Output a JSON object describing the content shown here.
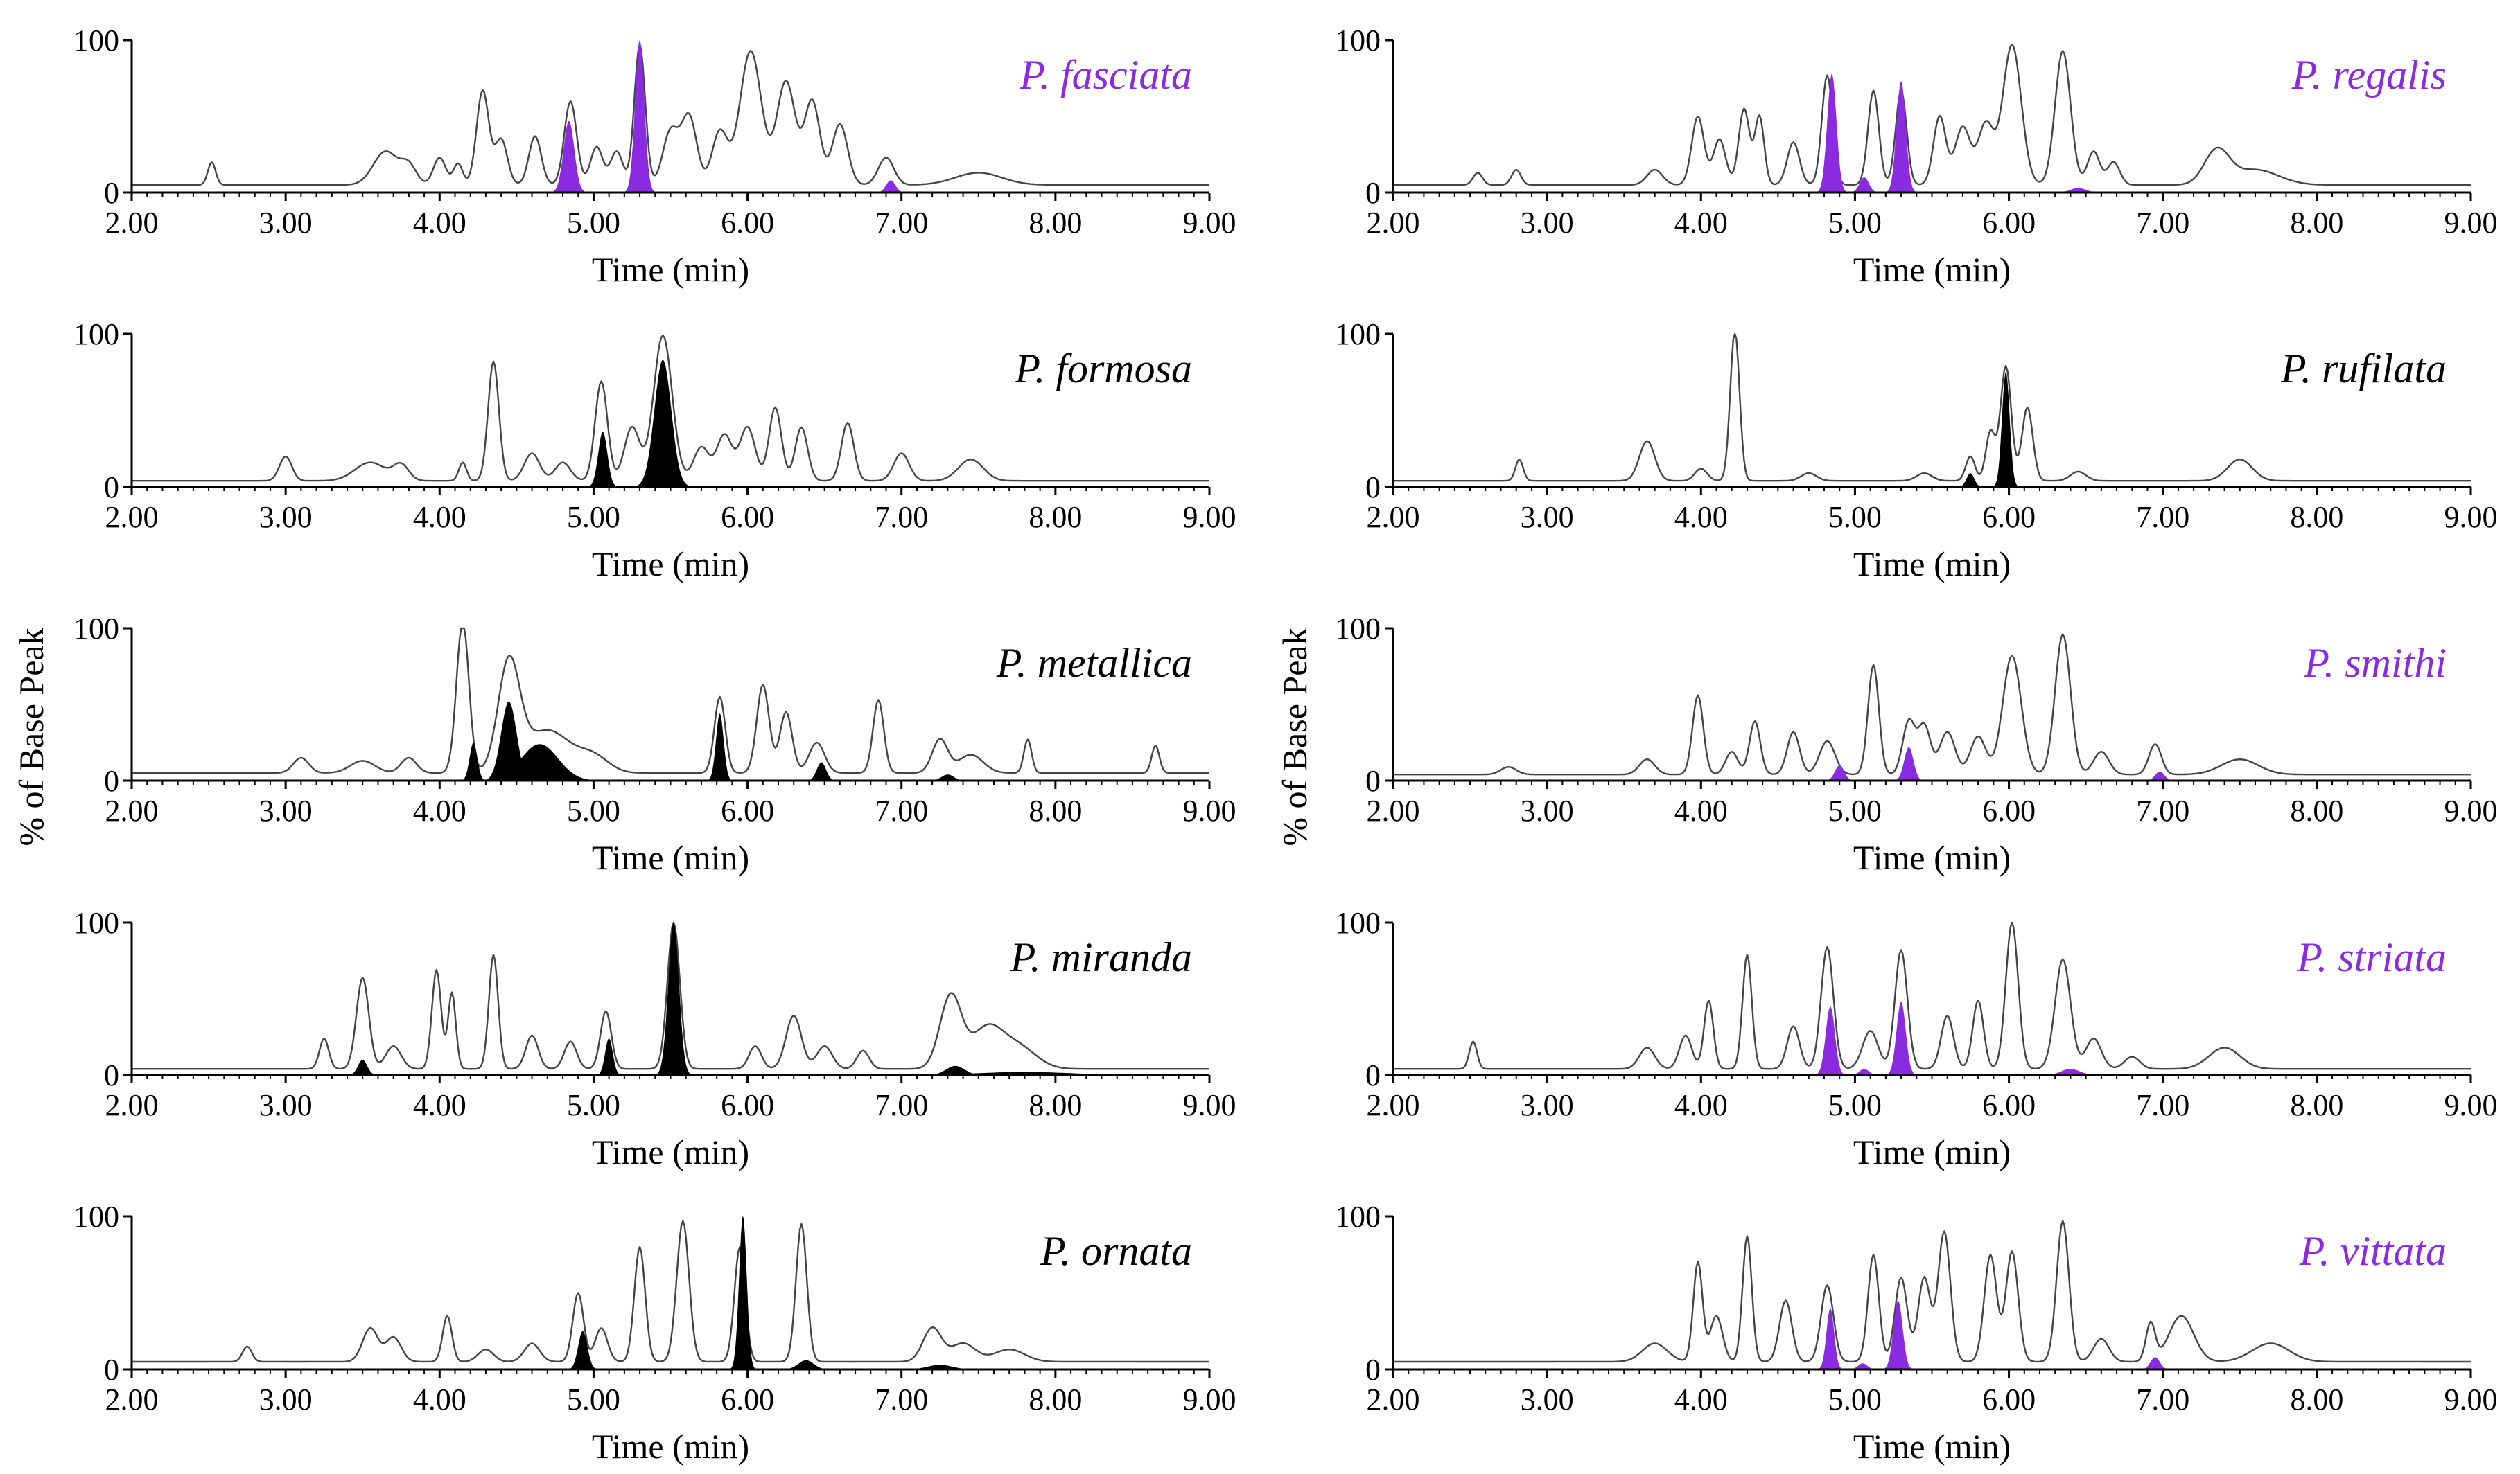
{
  "colors": {
    "purple": "#8a2be2",
    "black": "#000000",
    "trace": "#444444"
  },
  "chart_data": {
    "type": "area",
    "ylabel": "% of Base Peak",
    "xlabel": "Time (min)",
    "xlim": [
      2.0,
      9.0
    ],
    "ylim": [
      0,
      100
    ],
    "x_ticks": [
      "2.00",
      "3.00",
      "4.00",
      "5.00",
      "6.00",
      "7.00",
      "8.00",
      "9.00"
    ],
    "y_ticks": [
      "0",
      "100"
    ],
    "grid": false,
    "panels": [
      {
        "title": "P. fasciata",
        "title_color": "#8a2be2",
        "fill_color": "#8a2be2",
        "baseline": 5,
        "trace_peaks": [
          [
            2.52,
            15,
            0.025
          ],
          [
            3.65,
            22,
            0.08
          ],
          [
            3.8,
            12,
            0.05
          ],
          [
            4.0,
            18,
            0.04
          ],
          [
            4.12,
            14,
            0.03
          ],
          [
            4.28,
            62,
            0.04
          ],
          [
            4.4,
            30,
            0.04
          ],
          [
            4.62,
            32,
            0.04
          ],
          [
            4.85,
            55,
            0.04
          ],
          [
            5.02,
            25,
            0.04
          ],
          [
            5.15,
            22,
            0.04
          ],
          [
            5.3,
            92,
            0.035
          ],
          [
            5.5,
            35,
            0.05
          ],
          [
            5.62,
            45,
            0.05
          ],
          [
            5.82,
            35,
            0.05
          ],
          [
            6.02,
            88,
            0.07
          ],
          [
            6.25,
            68,
            0.06
          ],
          [
            6.42,
            55,
            0.05
          ],
          [
            6.6,
            40,
            0.05
          ],
          [
            6.9,
            18,
            0.05
          ],
          [
            7.5,
            8,
            0.15
          ]
        ],
        "fill_peaks": [
          [
            4.84,
            47,
            0.035
          ],
          [
            5.3,
            100,
            0.03
          ],
          [
            6.93,
            8,
            0.03
          ]
        ]
      },
      {
        "title": "P. formosa",
        "title_color": "#000000",
        "fill_color": "#000000",
        "baseline": 4,
        "trace_peaks": [
          [
            3.0,
            16,
            0.04
          ],
          [
            3.55,
            12,
            0.1
          ],
          [
            3.75,
            10,
            0.05
          ],
          [
            4.15,
            12,
            0.025
          ],
          [
            4.35,
            78,
            0.035
          ],
          [
            4.6,
            18,
            0.05
          ],
          [
            4.8,
            12,
            0.05
          ],
          [
            5.05,
            65,
            0.04
          ],
          [
            5.25,
            35,
            0.05
          ],
          [
            5.45,
            95,
            0.06
          ],
          [
            5.7,
            22,
            0.05
          ],
          [
            5.85,
            30,
            0.05
          ],
          [
            6.0,
            35,
            0.05
          ],
          [
            6.18,
            48,
            0.04
          ],
          [
            6.35,
            35,
            0.04
          ],
          [
            6.65,
            38,
            0.04
          ],
          [
            7.0,
            18,
            0.05
          ],
          [
            7.45,
            14,
            0.08
          ]
        ],
        "fill_peaks": [
          [
            5.06,
            36,
            0.03
          ],
          [
            5.45,
            83,
            0.055
          ]
        ]
      },
      {
        "title": "P. metallica",
        "title_color": "#000000",
        "fill_color": "#000000",
        "baseline": 5,
        "trace_peaks": [
          [
            3.1,
            10,
            0.05
          ],
          [
            3.5,
            8,
            0.08
          ],
          [
            3.8,
            10,
            0.05
          ],
          [
            4.15,
            100,
            0.04
          ],
          [
            4.45,
            70,
            0.07
          ],
          [
            4.7,
            28,
            0.15
          ],
          [
            5.0,
            10,
            0.1
          ],
          [
            5.82,
            50,
            0.035
          ],
          [
            6.1,
            58,
            0.04
          ],
          [
            6.25,
            40,
            0.04
          ],
          [
            6.45,
            20,
            0.05
          ],
          [
            6.85,
            48,
            0.035
          ],
          [
            7.25,
            22,
            0.05
          ],
          [
            7.45,
            12,
            0.08
          ],
          [
            7.82,
            22,
            0.025
          ],
          [
            8.65,
            18,
            0.025
          ]
        ],
        "fill_peaks": [
          [
            4.22,
            25,
            0.025
          ],
          [
            4.45,
            52,
            0.05
          ],
          [
            4.65,
            24,
            0.12
          ],
          [
            5.82,
            44,
            0.025
          ],
          [
            6.48,
            12,
            0.03
          ],
          [
            7.3,
            4,
            0.04
          ]
        ]
      },
      {
        "title": "P. miranda",
        "title_color": "#000000",
        "fill_color": "#000000",
        "baseline": 4,
        "trace_peaks": [
          [
            3.25,
            20,
            0.03
          ],
          [
            3.5,
            60,
            0.04
          ],
          [
            3.7,
            15,
            0.05
          ],
          [
            3.98,
            65,
            0.03
          ],
          [
            4.08,
            50,
            0.025
          ],
          [
            4.35,
            75,
            0.03
          ],
          [
            4.6,
            22,
            0.04
          ],
          [
            4.85,
            18,
            0.04
          ],
          [
            5.08,
            38,
            0.035
          ],
          [
            5.52,
            96,
            0.04
          ],
          [
            6.05,
            15,
            0.04
          ],
          [
            6.3,
            35,
            0.05
          ],
          [
            6.5,
            15,
            0.05
          ],
          [
            6.75,
            12,
            0.04
          ],
          [
            7.32,
            48,
            0.07
          ],
          [
            7.55,
            25,
            0.1
          ],
          [
            7.75,
            15,
            0.12
          ]
        ],
        "fill_peaks": [
          [
            3.5,
            10,
            0.03
          ],
          [
            5.1,
            24,
            0.025
          ],
          [
            5.52,
            100,
            0.035
          ],
          [
            7.35,
            6,
            0.06
          ],
          [
            7.8,
            2,
            0.3
          ]
        ]
      },
      {
        "title": "P. ornata",
        "title_color": "#000000",
        "fill_color": "#000000",
        "baseline": 5,
        "trace_peaks": [
          [
            2.75,
            10,
            0.03
          ],
          [
            3.55,
            22,
            0.05
          ],
          [
            3.7,
            16,
            0.05
          ],
          [
            4.05,
            30,
            0.03
          ],
          [
            4.3,
            8,
            0.05
          ],
          [
            4.6,
            12,
            0.05
          ],
          [
            4.9,
            45,
            0.035
          ],
          [
            5.05,
            22,
            0.04
          ],
          [
            5.3,
            75,
            0.035
          ],
          [
            5.58,
            92,
            0.04
          ],
          [
            5.95,
            75,
            0.035
          ],
          [
            6.35,
            90,
            0.035
          ],
          [
            7.2,
            22,
            0.06
          ],
          [
            7.4,
            12,
            0.08
          ],
          [
            7.7,
            8,
            0.1
          ]
        ],
        "fill_peaks": [
          [
            4.93,
            25,
            0.03
          ],
          [
            5.97,
            100,
            0.025
          ],
          [
            6.38,
            6,
            0.05
          ],
          [
            7.25,
            3,
            0.08
          ]
        ]
      },
      {
        "title": "P. regalis",
        "title_color": "#8a2be2",
        "fill_color": "#8a2be2",
        "baseline": 5,
        "trace_peaks": [
          [
            2.55,
            8,
            0.03
          ],
          [
            2.8,
            10,
            0.03
          ],
          [
            3.7,
            10,
            0.05
          ],
          [
            3.98,
            45,
            0.04
          ],
          [
            4.12,
            30,
            0.04
          ],
          [
            4.28,
            50,
            0.035
          ],
          [
            4.38,
            45,
            0.03
          ],
          [
            4.6,
            28,
            0.04
          ],
          [
            4.82,
            72,
            0.035
          ],
          [
            5.12,
            62,
            0.035
          ],
          [
            5.3,
            62,
            0.035
          ],
          [
            5.55,
            45,
            0.04
          ],
          [
            5.7,
            38,
            0.05
          ],
          [
            5.85,
            40,
            0.05
          ],
          [
            6.02,
            92,
            0.06
          ],
          [
            6.35,
            88,
            0.05
          ],
          [
            6.55,
            22,
            0.04
          ],
          [
            6.68,
            15,
            0.04
          ],
          [
            7.35,
            22,
            0.08
          ],
          [
            7.6,
            10,
            0.15
          ]
        ],
        "fill_peaks": [
          [
            4.85,
            78,
            0.03
          ],
          [
            5.06,
            10,
            0.03
          ],
          [
            5.3,
            73,
            0.03
          ],
          [
            6.45,
            3,
            0.05
          ]
        ]
      },
      {
        "title": "P. rufilata",
        "title_color": "#000000",
        "fill_color": "#000000",
        "baseline": 4,
        "trace_peaks": [
          [
            2.82,
            14,
            0.025
          ],
          [
            3.65,
            26,
            0.05
          ],
          [
            4.0,
            8,
            0.04
          ],
          [
            4.22,
            98,
            0.03
          ],
          [
            4.7,
            5,
            0.05
          ],
          [
            5.45,
            5,
            0.05
          ],
          [
            5.75,
            16,
            0.03
          ],
          [
            5.88,
            32,
            0.03
          ],
          [
            5.98,
            75,
            0.035
          ],
          [
            6.12,
            48,
            0.035
          ],
          [
            6.45,
            6,
            0.05
          ],
          [
            7.5,
            14,
            0.08
          ]
        ],
        "fill_peaks": [
          [
            5.75,
            9,
            0.025
          ],
          [
            5.98,
            75,
            0.025
          ]
        ]
      },
      {
        "title": "P. smithi",
        "title_color": "#8a2be2",
        "fill_color": "#8a2be2",
        "baseline": 4,
        "trace_peaks": [
          [
            2.75,
            5,
            0.05
          ],
          [
            3.65,
            10,
            0.05
          ],
          [
            3.98,
            52,
            0.035
          ],
          [
            4.2,
            15,
            0.04
          ],
          [
            4.35,
            35,
            0.035
          ],
          [
            4.6,
            28,
            0.04
          ],
          [
            4.82,
            22,
            0.05
          ],
          [
            5.12,
            72,
            0.035
          ],
          [
            5.35,
            35,
            0.04
          ],
          [
            5.45,
            32,
            0.04
          ],
          [
            5.6,
            28,
            0.05
          ],
          [
            5.8,
            25,
            0.05
          ],
          [
            6.02,
            78,
            0.06
          ],
          [
            6.35,
            92,
            0.05
          ],
          [
            6.6,
            15,
            0.05
          ],
          [
            6.95,
            20,
            0.04
          ],
          [
            7.5,
            10,
            0.12
          ]
        ],
        "fill_peaks": [
          [
            4.9,
            10,
            0.03
          ],
          [
            5.35,
            22,
            0.03
          ],
          [
            6.98,
            6,
            0.03
          ]
        ]
      },
      {
        "title": "P. striata",
        "title_color": "#8a2be2",
        "fill_color": "#8a2be2",
        "baseline": 4,
        "trace_peaks": [
          [
            2.52,
            18,
            0.025
          ],
          [
            3.65,
            14,
            0.05
          ],
          [
            3.9,
            22,
            0.04
          ],
          [
            4.05,
            45,
            0.03
          ],
          [
            4.3,
            75,
            0.03
          ],
          [
            4.6,
            28,
            0.04
          ],
          [
            4.82,
            80,
            0.04
          ],
          [
            5.1,
            25,
            0.05
          ],
          [
            5.3,
            78,
            0.04
          ],
          [
            5.6,
            35,
            0.04
          ],
          [
            5.8,
            45,
            0.035
          ],
          [
            6.02,
            96,
            0.04
          ],
          [
            6.35,
            72,
            0.05
          ],
          [
            6.55,
            20,
            0.05
          ],
          [
            6.8,
            8,
            0.05
          ],
          [
            7.4,
            14,
            0.1
          ]
        ],
        "fill_peaks": [
          [
            4.84,
            45,
            0.03
          ],
          [
            5.06,
            4,
            0.03
          ],
          [
            5.3,
            48,
            0.03
          ],
          [
            6.4,
            4,
            0.06
          ]
        ]
      },
      {
        "title": "P. vittata",
        "title_color": "#8a2be2",
        "fill_color": "#8a2be2",
        "baseline": 5,
        "trace_peaks": [
          [
            3.7,
            12,
            0.08
          ],
          [
            3.98,
            65,
            0.03
          ],
          [
            4.1,
            30,
            0.04
          ],
          [
            4.3,
            82,
            0.03
          ],
          [
            4.55,
            40,
            0.04
          ],
          [
            4.82,
            50,
            0.04
          ],
          [
            5.12,
            70,
            0.035
          ],
          [
            5.3,
            55,
            0.04
          ],
          [
            5.45,
            55,
            0.04
          ],
          [
            5.58,
            85,
            0.04
          ],
          [
            5.88,
            70,
            0.04
          ],
          [
            6.02,
            72,
            0.04
          ],
          [
            6.35,
            92,
            0.04
          ],
          [
            6.6,
            15,
            0.05
          ],
          [
            6.92,
            25,
            0.03
          ],
          [
            7.12,
            30,
            0.08
          ],
          [
            7.7,
            12,
            0.12
          ]
        ],
        "fill_peaks": [
          [
            4.84,
            40,
            0.025
          ],
          [
            5.05,
            4,
            0.03
          ],
          [
            5.28,
            45,
            0.03
          ],
          [
            6.95,
            8,
            0.03
          ]
        ]
      }
    ]
  }
}
